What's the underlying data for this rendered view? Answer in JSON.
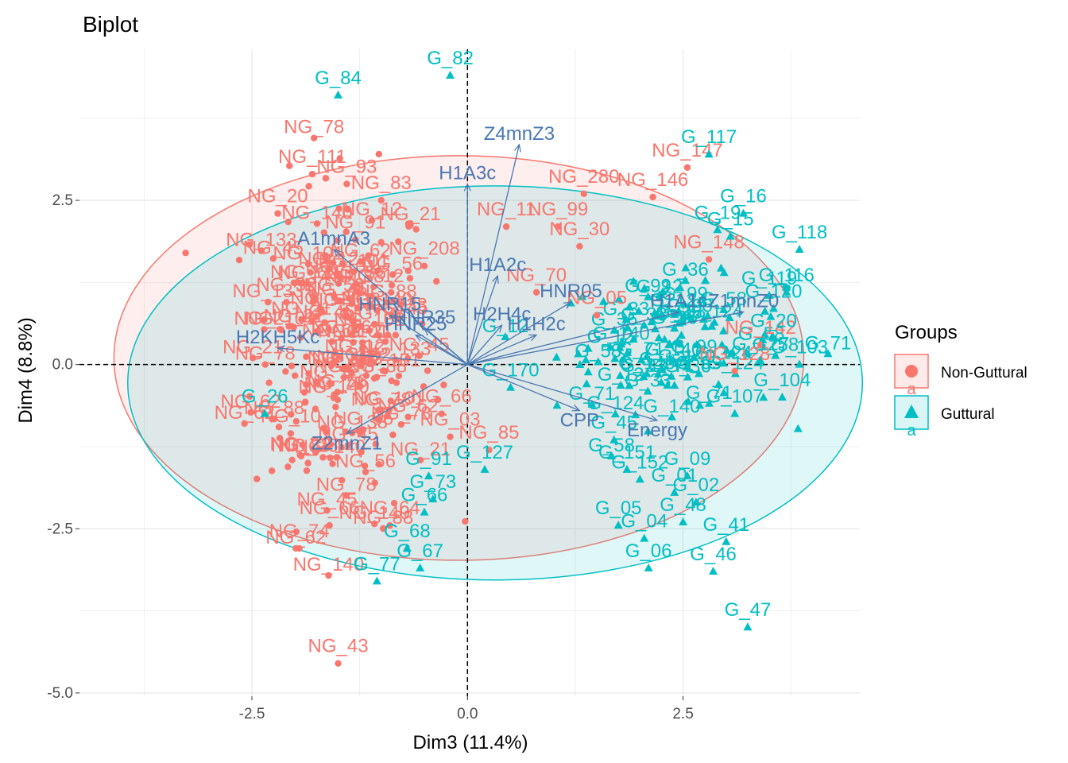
{
  "chart_data": {
    "type": "scatter",
    "title": "Biplot",
    "xlabel": "Dim3 (11.4%)",
    "ylabel": "Dim4 (8.8%)",
    "xlim": [
      -4.5,
      4.55
    ],
    "ylim": [
      -5.05,
      4.8
    ],
    "xticks": [
      -2.5,
      0.0,
      2.5
    ],
    "yticks": [
      -5.0,
      -2.5,
      0.0,
      2.5
    ],
    "grid": true,
    "legend": {
      "title": "Groups",
      "position": "right"
    },
    "colors": {
      "Non-Guttural": "#F8766D",
      "Guttural": "#00BFC4",
      "variables": "#4A78B3"
    },
    "series": [
      {
        "name": "Non-Guttural",
        "marker": "circle",
        "ellipse": {
          "cx": -0.1,
          "cy": 0.1,
          "rx": 4.0,
          "ry": 3.08
        },
        "points": [
          {
            "label": "NG_43",
            "x": -1.5,
            "y": -4.55
          },
          {
            "label": "NG_111",
            "x": -1.8,
            "y": 2.9
          },
          {
            "label": "NG_93",
            "x": -1.4,
            "y": 2.75
          },
          {
            "label": "NG_83",
            "x": -1.0,
            "y": 2.5
          },
          {
            "label": "NG_147",
            "x": 2.55,
            "y": 3.0
          },
          {
            "label": "NG_146",
            "x": 2.15,
            "y": 2.55
          },
          {
            "label": "NG_280",
            "x": 1.35,
            "y": 2.6
          },
          {
            "label": "NG_11",
            "x": 0.45,
            "y": 2.1
          },
          {
            "label": "NG_99",
            "x": 1.05,
            "y": 2.1
          },
          {
            "label": "NG_30",
            "x": 1.3,
            "y": 1.8
          },
          {
            "label": "NG_148",
            "x": 2.8,
            "y": 1.6
          },
          {
            "label": "NG_20",
            "x": -2.2,
            "y": 2.3
          },
          {
            "label": "NG_91",
            "x": -1.3,
            "y": 1.9
          },
          {
            "label": "NG_208",
            "x": -0.5,
            "y": 1.5
          },
          {
            "label": "NG_70",
            "x": 0.8,
            "y": 1.1
          },
          {
            "label": "NG_05",
            "x": 1.5,
            "y": 0.75
          },
          {
            "label": "NG_32",
            "x": -2.1,
            "y": 0.95
          },
          {
            "label": "NG_142",
            "x": 3.4,
            "y": 0.3
          },
          {
            "label": "NG_128",
            "x": 3.1,
            "y": -0.1
          },
          {
            "label": "NG_66",
            "x": -0.3,
            "y": -0.75
          },
          {
            "label": "NG_03",
            "x": -0.2,
            "y": -1.1
          },
          {
            "label": "NG_85",
            "x": 0.25,
            "y": -1.3
          },
          {
            "label": "NG_64",
            "x": -0.9,
            "y": -2.45
          },
          {
            "label": "NG_66",
            "x": -1.6,
            "y": -2.45
          },
          {
            "label": "NG_74",
            "x": -1.95,
            "y": -2.8
          },
          {
            "label": "NG_26",
            "x": -1.85,
            "y": -1.5
          },
          {
            "label": "NG_10",
            "x": -2.05,
            "y": -1.05
          }
        ],
        "cloud": {
          "cx": -1.45,
          "cy": 0.2,
          "rx": 0.95,
          "ry": 2.6,
          "count": 220
        }
      },
      {
        "name": "Guttural",
        "marker": "triangle",
        "ellipse": {
          "cx": 0.32,
          "cy": -0.28,
          "rx": 4.26,
          "ry": 3.0
        },
        "points": [
          {
            "label": "G_84",
            "x": -1.5,
            "y": 4.1
          },
          {
            "label": "G_82",
            "x": -0.2,
            "y": 4.4
          },
          {
            "label": "G_117",
            "x": 2.8,
            "y": 3.2
          },
          {
            "label": "G_16",
            "x": 3.2,
            "y": 2.3
          },
          {
            "label": "G_19",
            "x": 2.9,
            "y": 2.05
          },
          {
            "label": "G_15",
            "x": 3.05,
            "y": 1.95
          },
          {
            "label": "G_118",
            "x": 3.85,
            "y": 1.75
          },
          {
            "label": "G_116",
            "x": 3.7,
            "y": 1.1
          },
          {
            "label": "G_119",
            "x": 3.5,
            "y": 1.05
          },
          {
            "label": "G_120",
            "x": 3.55,
            "y": 0.85
          },
          {
            "label": "G_20",
            "x": 3.55,
            "y": 0.4
          },
          {
            "label": "G_103",
            "x": 3.85,
            "y": 0.0
          },
          {
            "label": "G_127",
            "x": 3.4,
            "y": 0.05
          },
          {
            "label": "G_104",
            "x": 3.65,
            "y": -0.5
          },
          {
            "label": "G_107",
            "x": 3.1,
            "y": -0.75
          },
          {
            "label": "G_09",
            "x": 2.55,
            "y": -1.7
          },
          {
            "label": "G_01",
            "x": 2.4,
            "y": -1.95
          },
          {
            "label": "G_02",
            "x": 2.65,
            "y": -2.1
          },
          {
            "label": "G_48",
            "x": 2.5,
            "y": -2.4
          },
          {
            "label": "G_41",
            "x": 3.0,
            "y": -2.7
          },
          {
            "label": "G_46",
            "x": 2.85,
            "y": -3.15
          },
          {
            "label": "G_47",
            "x": 3.25,
            "y": -4.0
          },
          {
            "label": "G_05",
            "x": 1.75,
            "y": -2.45
          },
          {
            "label": "G_04",
            "x": 2.05,
            "y": -2.65
          },
          {
            "label": "G_06",
            "x": 2.1,
            "y": -3.1
          },
          {
            "label": "G_45",
            "x": 1.7,
            "y": -1.15
          },
          {
            "label": "G_151",
            "x": 1.85,
            "y": -1.6
          },
          {
            "label": "G_152",
            "x": 2.0,
            "y": -1.75
          },
          {
            "label": "G_73",
            "x": -0.4,
            "y": -2.05
          },
          {
            "label": "G_91",
            "x": -0.45,
            "y": -1.7
          },
          {
            "label": "G_127",
            "x": 0.2,
            "y": -1.6
          },
          {
            "label": "G_66",
            "x": -0.5,
            "y": -2.25
          },
          {
            "label": "G_67",
            "x": -0.55,
            "y": -3.1
          },
          {
            "label": "G_68",
            "x": -0.7,
            "y": -2.8
          },
          {
            "label": "G_77",
            "x": -1.05,
            "y": -3.3
          },
          {
            "label": "G_170",
            "x": 0.5,
            "y": -0.35
          },
          {
            "label": "G_26",
            "x": -2.35,
            "y": -0.75
          }
        ],
        "cloud": {
          "cx": 2.35,
          "cy": 0.3,
          "rx": 1.2,
          "ry": 1.0,
          "count": 120
        }
      }
    ],
    "variables": [
      {
        "label": "Z4mnZ3",
        "x": 0.6,
        "y": 3.35
      },
      {
        "label": "H1A3c",
        "x": 0.0,
        "y": 2.75
      },
      {
        "label": "A1mnA3",
        "x": -1.55,
        "y": 1.75
      },
      {
        "label": "H2KH5Kc",
        "x": -2.2,
        "y": 0.25
      },
      {
        "label": "Z2mnZ1",
        "x": -1.4,
        "y": -1.05
      },
      {
        "label": "H1A2c",
        "x": 0.35,
        "y": 1.35
      },
      {
        "label": "H1A1c",
        "x": 2.45,
        "y": 0.8
      },
      {
        "label": "Z1mnZ0",
        "x": 3.2,
        "y": 0.8
      },
      {
        "label": "HNR05",
        "x": 1.2,
        "y": 0.95
      },
      {
        "label": "CPP",
        "x": 1.3,
        "y": -0.7
      },
      {
        "label": "HNR15",
        "x": -0.9,
        "y": 0.75
      },
      {
        "label": "HNR25",
        "x": -0.6,
        "y": 0.45
      },
      {
        "label": "HNR35",
        "x": -0.5,
        "y": 0.55
      },
      {
        "label": "H2H4c",
        "x": 0.4,
        "y": 0.6
      },
      {
        "label": "Energy",
        "x": 2.2,
        "y": -0.85
      },
      {
        "label": "H1H2c",
        "x": 0.8,
        "y": 0.45
      }
    ]
  }
}
